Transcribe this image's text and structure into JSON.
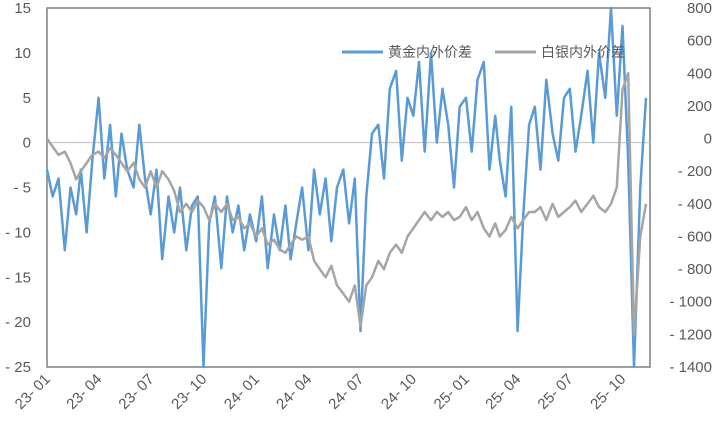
{
  "chart_data": {
    "type": "line",
    "title": "",
    "xlabel": "",
    "ylabel": "",
    "y_left": {
      "range": [
        -25,
        15
      ],
      "ticks": [
        "15",
        "10",
        "5",
        "0",
        "-5",
        "-10",
        "-15",
        "-20",
        "-25"
      ]
    },
    "y_right": {
      "range": [
        -1400,
        800
      ],
      "ticks": [
        "800",
        "600",
        "400",
        "200",
        "0",
        "-200",
        "-400",
        "-600",
        "-800",
        "-1000",
        "-1200",
        "-1400"
      ]
    },
    "x_ticks": [
      "23-01",
      "23-04",
      "23-07",
      "23-10",
      "24-01",
      "24-04",
      "24-07",
      "24-10",
      "25-01",
      "25-04",
      "25-07",
      "25-10"
    ],
    "x_tick_dates": [
      "2023-01-01",
      "2023-04-01",
      "2023-07-01",
      "2023-10-01",
      "2024-01-01",
      "2024-04-01",
      "2024-07-01",
      "2024-10-01",
      "2025-01-01",
      "2025-04-01",
      "2025-07-01",
      "2025-10-01"
    ],
    "x_range": [
      "2023-01-01",
      "2025-11-18"
    ],
    "grid": false,
    "zero_line": true,
    "legend": "top-right",
    "months": [
      "2023-01",
      "2023-02",
      "2023-03",
      "2023-04",
      "2023-05",
      "2023-06",
      "2023-07",
      "2023-08",
      "2023-09",
      "2023-10",
      "2023-11",
      "2023-12",
      "2024-01",
      "2024-02",
      "2024-03",
      "2024-04",
      "2024-05",
      "2024-06",
      "2024-07",
      "2024-08",
      "2024-09",
      "2024-10",
      "2024-11",
      "2024-12",
      "2025-01",
      "2025-02",
      "2025-03",
      "2025-04",
      "2025-05",
      "2025-06",
      "2025-07",
      "2025-08",
      "2025-09",
      "2025-10",
      "2025-11"
    ],
    "days_per_month": [
      "01",
      "11",
      "21"
    ],
    "series": [
      {
        "name": "黄金内外价差",
        "axis": "left",
        "color": "#5B9BD5",
        "values": [
          -3,
          -6,
          -4,
          -12,
          -5,
          -8,
          -3,
          -10,
          -2,
          5,
          -4,
          2,
          -6,
          1,
          -3,
          -5,
          2,
          -4,
          -8,
          -3,
          -13,
          -6,
          -10,
          -5,
          -12,
          -7,
          -6,
          -25,
          -9,
          -6,
          -14,
          -6,
          -10,
          -7,
          -12,
          -8,
          -11,
          -6,
          -14,
          -8,
          -12,
          -7,
          -13,
          -9,
          -5,
          -12,
          -3,
          -8,
          -4,
          -11,
          -5,
          -3,
          -9,
          -4,
          -21,
          -6,
          1,
          2,
          -4,
          6,
          8,
          -2,
          5,
          3,
          9,
          -1,
          10,
          0,
          6,
          2,
          -5,
          4,
          5,
          -1,
          7,
          9,
          -3,
          3,
          -2,
          -6,
          4,
          -21,
          -8,
          2,
          4,
          -3,
          7,
          1,
          -2,
          5,
          6,
          -1,
          3,
          8,
          0,
          10,
          5,
          15,
          3,
          13,
          -2,
          -25,
          -5,
          5
        ]
      },
      {
        "name": "白银内外价差",
        "axis": "right",
        "color": "#A5A5A5",
        "values": [
          0,
          -50,
          -100,
          -80,
          -150,
          -250,
          -200,
          -150,
          -100,
          -80,
          -120,
          -60,
          -100,
          -150,
          -200,
          -150,
          -250,
          -300,
          -200,
          -300,
          -200,
          -250,
          -320,
          -450,
          -400,
          -450,
          -380,
          -420,
          -500,
          -400,
          -450,
          -400,
          -500,
          -480,
          -550,
          -520,
          -600,
          -550,
          -650,
          -620,
          -680,
          -700,
          -650,
          -600,
          -620,
          -600,
          -750,
          -800,
          -850,
          -780,
          -900,
          -950,
          -1000,
          -900,
          -1150,
          -900,
          -850,
          -750,
          -800,
          -700,
          -650,
          -700,
          -600,
          -550,
          -500,
          -450,
          -500,
          -450,
          -480,
          -450,
          -500,
          -480,
          -420,
          -500,
          -450,
          -550,
          -600,
          -520,
          -600,
          -560,
          -480,
          -550,
          -500,
          -450,
          -450,
          -420,
          -500,
          -400,
          -480,
          -450,
          -420,
          -380,
          -450,
          -400,
          -350,
          -420,
          -450,
          -400,
          -300,
          300,
          400,
          -1200,
          -600,
          -400
        ]
      }
    ]
  }
}
